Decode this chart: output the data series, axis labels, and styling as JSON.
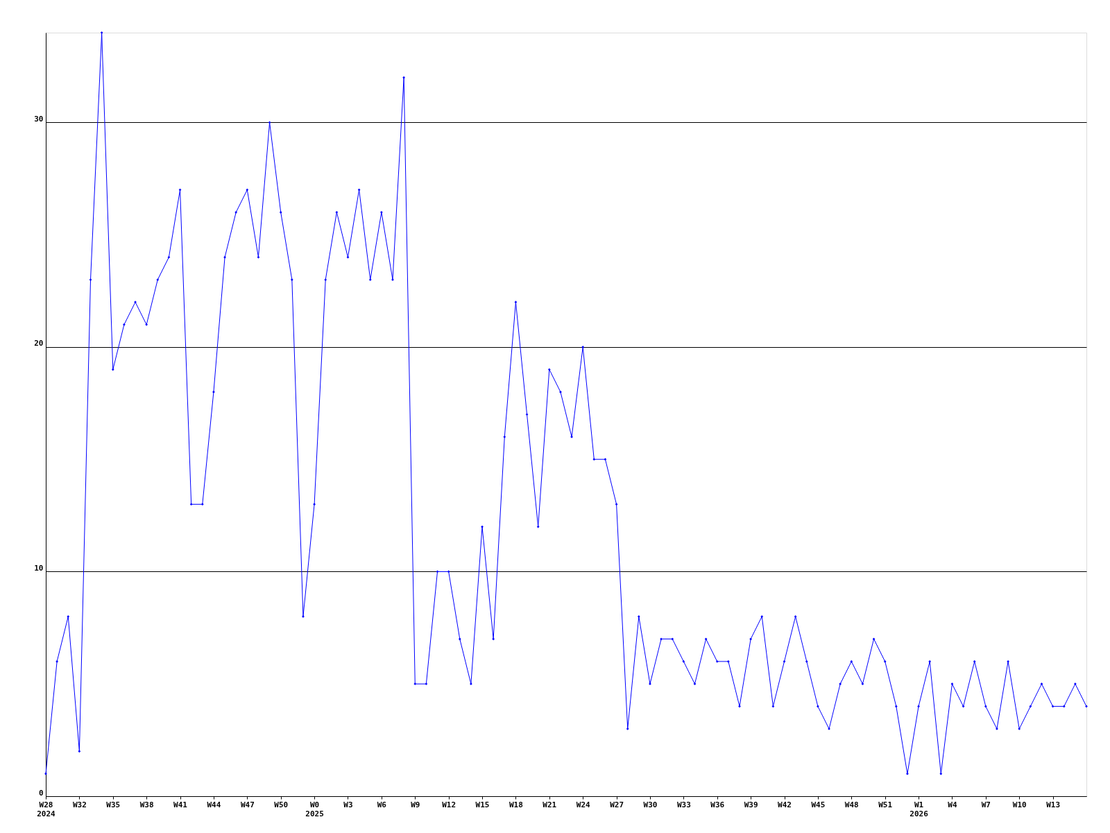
{
  "chart_data": {
    "type": "line",
    "categories": [
      "W28\n2024",
      null,
      null,
      "W32",
      null,
      null,
      "W35",
      null,
      null,
      "W38",
      null,
      null,
      "W41",
      null,
      null,
      "W44",
      null,
      null,
      "W47",
      null,
      null,
      "W50",
      null,
      null,
      "W0\n2025",
      null,
      null,
      "W3",
      null,
      null,
      "W6",
      null,
      null,
      "W9",
      null,
      null,
      "W12",
      null,
      null,
      "W15",
      null,
      null,
      "W18",
      null,
      null,
      "W21",
      null,
      null,
      "W24",
      null,
      null,
      "W27",
      null,
      null,
      "W30",
      null,
      null,
      "W33",
      null,
      null,
      "W36",
      null,
      null,
      "W39",
      null,
      null,
      "W42",
      null,
      null,
      "W45",
      null,
      null,
      "W48",
      null,
      null,
      "W51",
      null,
      null,
      "W1\n2026",
      null,
      null,
      "W4",
      null,
      null,
      "W7",
      null,
      null,
      "W10",
      null,
      null,
      "W13",
      null,
      null,
      null
    ],
    "series": [
      {
        "color": "#0000ff",
        "values": [
          1,
          6,
          8,
          2,
          23,
          34,
          19,
          21,
          22,
          21,
          23,
          24,
          27,
          13,
          13,
          18,
          24,
          26,
          27,
          24,
          30,
          26,
          23,
          8,
          13,
          23,
          26,
          24,
          27,
          23,
          26,
          23,
          32,
          5,
          5,
          10,
          10,
          7,
          5,
          12,
          7,
          16,
          22,
          17,
          12,
          19,
          18,
          16,
          20,
          15,
          15,
          13,
          3,
          8,
          5,
          7,
          7,
          6,
          5,
          7,
          6,
          6,
          4,
          7,
          8,
          4,
          6,
          8,
          6,
          4,
          3,
          5,
          6,
          5,
          7,
          6,
          4,
          1,
          4,
          6,
          1,
          5,
          4,
          6,
          4,
          3,
          6,
          3,
          4,
          5,
          4,
          4,
          5,
          4
        ]
      }
    ],
    "ylim": [
      0,
      34
    ],
    "yticks": [
      0,
      10,
      20,
      30
    ],
    "grid": "y",
    "marker": "diamond",
    "line_style": "solid"
  }
}
